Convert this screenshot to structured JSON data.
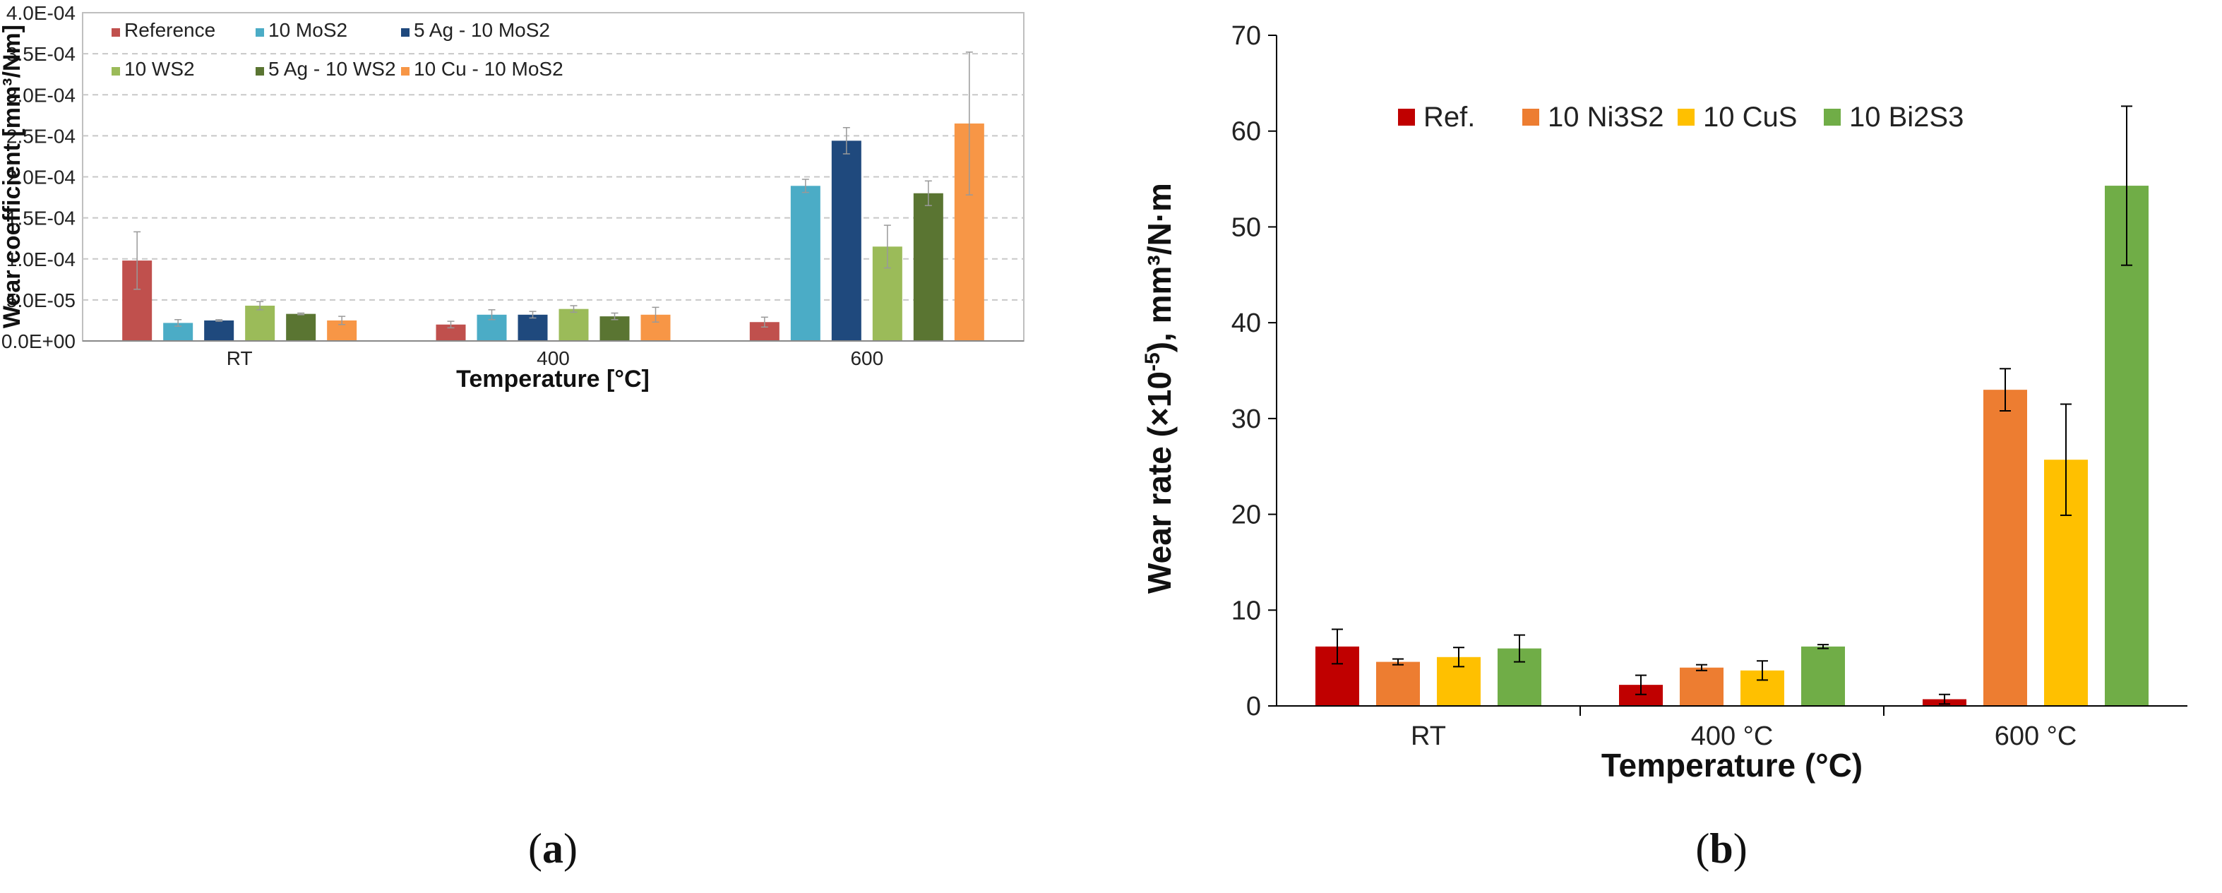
{
  "chart_data": [
    {
      "type": "bar",
      "panel_label": "a",
      "xlabel": "Temperature [°C]",
      "ylabel": "Wear coefficient [mm³/Nm]",
      "ylim": [
        0,
        0.0004
      ],
      "yticks": [
        0,
        5e-05,
        0.0001,
        0.00015,
        0.0002,
        0.00025,
        0.0003,
        0.00035,
        0.0004
      ],
      "ytick_labels": [
        "0.0E+00",
        "5.0E-05",
        "1.0E-04",
        "1.5E-04",
        "2.0E-04",
        "2.5E-04",
        "3.0E-04",
        "3.5E-04",
        "4.0E-04"
      ],
      "grid": true,
      "legend_position": "top",
      "categories": [
        "RT",
        "400",
        "600"
      ],
      "series": [
        {
          "name": "Reference",
          "color": "#c0504d",
          "values": [
            9.8e-05,
            2e-05,
            2.3e-05
          ],
          "errors": [
            3.5e-05,
            4e-06,
            6e-06
          ]
        },
        {
          "name": "10 MoS2",
          "color": "#4bacc6",
          "values": [
            2.2e-05,
            3.2e-05,
            0.000189
          ],
          "errors": [
            4e-06,
            6e-06,
            8e-06
          ]
        },
        {
          "name": "5 Ag - 10 MoS2",
          "color": "#1f497d",
          "values": [
            2.5e-05,
            3.2e-05,
            0.000244
          ],
          "errors": [
            1e-06,
            4e-06,
            1.6e-05
          ]
        },
        {
          "name": "10 WS2",
          "color": "#9bbb59",
          "values": [
            4.3e-05,
            3.9e-05,
            0.000115
          ],
          "errors": [
            5e-06,
            4e-06,
            2.6e-05
          ]
        },
        {
          "name": "5 Ag - 10 WS2",
          "color": "#5a7532",
          "values": [
            3.3e-05,
            3e-05,
            0.00018
          ],
          "errors": [
            1e-06,
            4e-06,
            1.5e-05
          ]
        },
        {
          "name": "10 Cu - 10 MoS2",
          "color": "#f79646",
          "values": [
            2.5e-05,
            3.2e-05,
            0.000265
          ],
          "errors": [
            5e-06,
            9e-06,
            8.7e-05
          ]
        }
      ]
    },
    {
      "type": "bar",
      "panel_label": "b",
      "xlabel": "Temperature (°C)",
      "ylabel_main": "Wear rate (×10",
      "ylabel_sup": "-5",
      "ylabel_tail": "), mm³/N·m",
      "ylim": [
        0,
        70
      ],
      "yticks": [
        0,
        10,
        20,
        30,
        40,
        50,
        60,
        70
      ],
      "grid": false,
      "legend_position": "top",
      "categories": [
        "RT",
        "400 °C",
        "600 °C"
      ],
      "series": [
        {
          "name": "Ref.",
          "color": "#c00000",
          "values": [
            6.2,
            2.2,
            0.7
          ],
          "errors": [
            1.8,
            1.0,
            0.5
          ]
        },
        {
          "name": "10 Ni3S2",
          "color": "#ed7d31",
          "values": [
            4.6,
            4.0,
            33.0
          ],
          "errors": [
            0.3,
            0.3,
            2.2
          ]
        },
        {
          "name": "10 CuS",
          "color": "#ffc000",
          "values": [
            5.1,
            3.7,
            25.7
          ],
          "errors": [
            1.0,
            1.0,
            5.8
          ]
        },
        {
          "name": "10 Bi2S3",
          "color": "#70ad47",
          "values": [
            6.0,
            6.2,
            54.3
          ],
          "errors": [
            1.4,
            0.2,
            8.3
          ]
        }
      ]
    }
  ]
}
